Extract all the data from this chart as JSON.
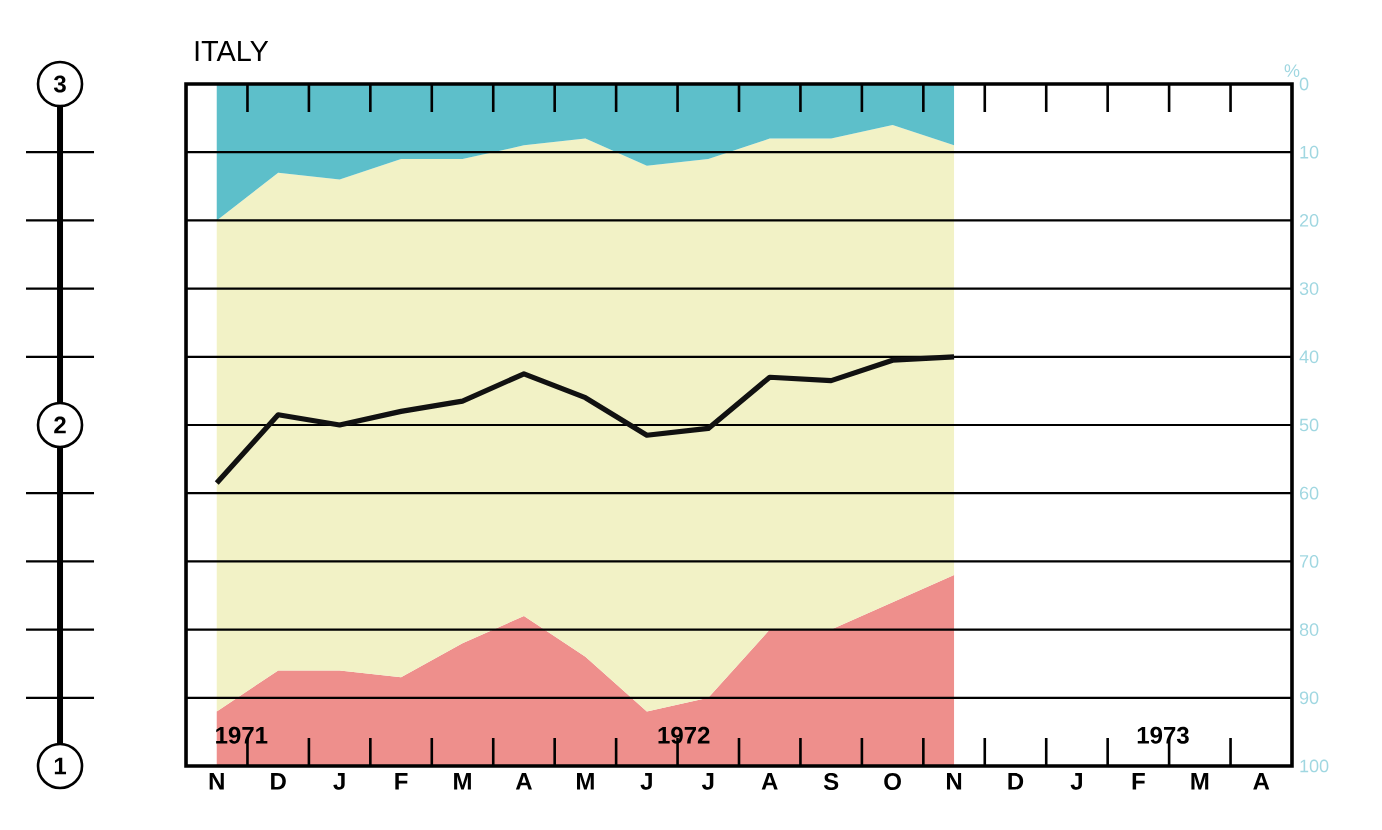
{
  "chart_data": {
    "type": "area",
    "title": "ITALY",
    "y2label": "%",
    "stacked": true,
    "grid": "y",
    "categories": [
      "N",
      "D",
      "J",
      "F",
      "M",
      "A",
      "M",
      "J",
      "J",
      "A",
      "S",
      "O",
      "N",
      "D",
      "J",
      "F",
      "M",
      "A"
    ],
    "ylim": [
      1,
      3
    ],
    "yticks": [
      1,
      {
        "value": 1.2,
        "label": null
      },
      {
        "value": 1.4,
        "label": null
      },
      {
        "value": 1.6,
        "label": null
      },
      {
        "value": 1.8,
        "label": null
      },
      2,
      {
        "value": 2.2,
        "label": null
      },
      {
        "value": 2.4,
        "label": null
      },
      {
        "value": 2.6,
        "label": null
      },
      {
        "value": 2.8,
        "label": null
      },
      3
    ],
    "y2lim": [
      100,
      0
    ],
    "y2ticks": [
      0,
      10,
      20,
      30,
      40,
      50,
      60,
      70,
      80,
      90,
      100
    ],
    "series": [
      {
        "color": "#5dbfca",
        "axis": "y2",
        "values": [
          20,
          13,
          14,
          11,
          11,
          9,
          8,
          12,
          11,
          8,
          8,
          6,
          9,
          null,
          null,
          null,
          null,
          null
        ]
      },
      {
        "color": "#f2f2c6",
        "axis": "y2",
        "values": [
          72,
          73,
          72,
          76,
          71,
          69,
          76,
          80,
          79,
          72,
          72,
          70,
          63,
          null,
          null,
          null,
          null,
          null
        ]
      },
      {
        "color": "#ee8f8c",
        "axis": "y2",
        "values": [
          8,
          14,
          14,
          13,
          18,
          22,
          16,
          8,
          10,
          20,
          20,
          24,
          28,
          null,
          null,
          null,
          null,
          null
        ]
      },
      {
        "type": "line",
        "color": "#111111",
        "values": [
          1.83,
          2.03,
          2.0,
          2.04,
          2.07,
          2.15,
          2.08,
          1.97,
          1.99,
          2.14,
          2.13,
          2.19,
          2.2,
          null,
          null,
          null,
          null,
          null
        ]
      }
    ],
    "annotations": [
      "1971",
      "1972",
      "1973"
    ]
  }
}
